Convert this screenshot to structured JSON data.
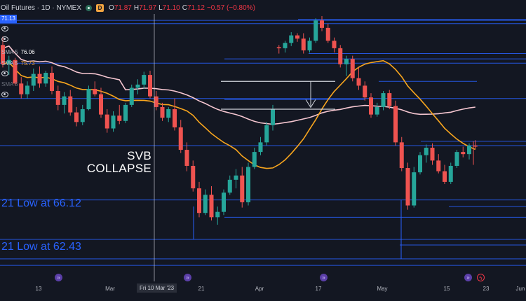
{
  "header": {
    "symbol": "Oil Futures · 1D · NYMEX",
    "interval_badge": "D",
    "ohlc": [
      {
        "k": "O",
        "v": "71.87"
      },
      {
        "k": "H",
        "v": "71.97"
      },
      {
        "k": "L",
        "v": "71.10"
      },
      {
        "k": "C",
        "v": "71.12"
      },
      {
        "k": "",
        "v": "−0.57 (−0.80%)"
      }
    ]
  },
  "last_price_badge": "71.13",
  "indicators": [
    {
      "label": "SMA 5",
      "value": "76.06",
      "color": "#ffffff"
    },
    {
      "label": "SMA 5",
      "value": "75.73",
      "color": "#f2a541"
    },
    {
      "label": "SMA 5",
      "value": "",
      "color": "#b2b5be"
    }
  ],
  "annotations": {
    "svb_line1": "SVB",
    "svb_line2": "COLLAPSE",
    "low1": "21 Low at 66.12",
    "low2": "21 Low at 62.43"
  },
  "x_axis": {
    "ticks": [
      "13",
      "Mar",
      "21",
      "Apr",
      "17",
      "May",
      "15",
      "23",
      "Jun"
    ],
    "cursor_label": "Fri 10 Mar '23"
  },
  "colors": {
    "up": "#26a69a",
    "down": "#ef5350",
    "sma_long": "#f5c6d0",
    "sma_mid": "#f7a51e",
    "hline": "#2962ff",
    "background": "#131722"
  },
  "chart_data": {
    "type": "candlestick",
    "title": "Oil Futures · 1D · NYMEX",
    "ylim": [
      58.5,
      83.5
    ],
    "candles": [
      [
        80.6,
        81.4,
        78.5,
        78.8
      ],
      [
        78.8,
        79.6,
        77.8,
        79.2
      ],
      [
        79.2,
        79.4,
        76.8,
        77.0
      ],
      [
        77.0,
        77.6,
        75.6,
        76.0
      ],
      [
        76.0,
        77.2,
        75.6,
        76.8
      ],
      [
        76.8,
        78.4,
        76.3,
        77.9
      ],
      [
        77.9,
        78.6,
        76.6,
        77.0
      ],
      [
        77.0,
        78.2,
        76.7,
        78.0
      ],
      [
        78.0,
        78.6,
        76.0,
        76.3
      ],
      [
        76.3,
        76.8,
        74.5,
        75.0
      ],
      [
        75.0,
        76.2,
        74.2,
        75.8
      ],
      [
        75.8,
        76.4,
        74.0,
        74.3
      ],
      [
        74.3,
        74.8,
        73.0,
        73.4
      ],
      [
        73.4,
        75.0,
        73.1,
        74.6
      ],
      [
        74.6,
        76.8,
        74.5,
        76.5
      ],
      [
        76.5,
        77.2,
        75.8,
        76.0
      ],
      [
        76.0,
        76.6,
        73.8,
        74.1
      ],
      [
        74.1,
        74.6,
        72.4,
        72.8
      ],
      [
        72.8,
        74.4,
        72.5,
        74.0
      ],
      [
        74.0,
        75.0,
        73.2,
        73.5
      ],
      [
        73.5,
        75.2,
        73.3,
        75.0
      ],
      [
        75.0,
        76.9,
        74.8,
        76.6
      ],
      [
        76.6,
        77.4,
        76.0,
        76.9
      ],
      [
        76.9,
        78.1,
        76.5,
        77.8
      ],
      [
        77.8,
        78.2,
        75.6,
        75.8
      ],
      [
        75.8,
        76.3,
        74.5,
        74.8
      ],
      [
        74.8,
        75.2,
        73.5,
        73.8
      ],
      [
        73.8,
        74.8,
        73.4,
        74.6
      ],
      [
        74.6,
        75.6,
        72.6,
        72.9
      ],
      [
        72.9,
        73.6,
        70.5,
        70.8
      ],
      [
        70.8,
        71.5,
        68.8,
        69.3
      ],
      [
        69.3,
        69.8,
        66.9,
        67.2
      ],
      [
        67.2,
        67.8,
        64.5,
        64.9
      ],
      [
        64.9,
        67.1,
        64.7,
        66.6
      ],
      [
        66.6,
        67.4,
        64.2,
        64.5
      ],
      [
        64.5,
        65.5,
        63.8,
        65.0
      ],
      [
        65.0,
        67.1,
        64.7,
        66.8
      ],
      [
        66.8,
        68.4,
        66.6,
        68.0
      ],
      [
        68.0,
        69.0,
        67.2,
        68.4
      ],
      [
        68.4,
        69.2,
        65.4,
        65.9
      ],
      [
        65.9,
        69.6,
        65.6,
        69.2
      ],
      [
        69.2,
        71.0,
        69.0,
        70.6
      ],
      [
        70.6,
        72.0,
        70.3,
        71.5
      ],
      [
        71.5,
        73.4,
        71.2,
        73.1
      ],
      [
        73.1,
        75.0,
        72.6,
        74.6
      ],
      [
        80.4,
        80.6,
        79.8,
        80.3
      ],
      [
        80.3,
        81.0,
        79.9,
        80.8
      ],
      [
        80.8,
        81.8,
        80.5,
        81.5
      ],
      [
        81.5,
        81.7,
        80.9,
        81.2
      ],
      [
        81.2,
        81.7,
        79.8,
        80.1
      ],
      [
        80.1,
        81.3,
        79.9,
        81.0
      ],
      [
        81.0,
        83.1,
        80.8,
        82.9
      ],
      [
        82.9,
        83.3,
        81.9,
        82.2
      ],
      [
        82.2,
        82.6,
        80.8,
        81.0
      ],
      [
        81.0,
        81.3,
        79.9,
        80.3
      ],
      [
        80.3,
        80.6,
        78.5,
        78.8
      ],
      [
        78.8,
        79.6,
        77.7,
        79.3
      ],
      [
        79.3,
        79.6,
        77.2,
        77.5
      ],
      [
        77.5,
        78.5,
        76.4,
        76.8
      ],
      [
        76.8,
        77.2,
        75.4,
        75.7
      ],
      [
        75.7,
        76.1,
        73.8,
        74.1
      ],
      [
        74.1,
        75.2,
        73.9,
        74.8
      ],
      [
        74.8,
        76.3,
        74.5,
        76.1
      ],
      [
        76.1,
        76.4,
        74.6,
        74.9
      ],
      [
        74.9,
        75.4,
        71.2,
        71.5
      ],
      [
        71.5,
        72.0,
        68.8,
        69.1
      ],
      [
        69.1,
        69.6,
        65.2,
        65.6
      ],
      [
        65.6,
        69.2,
        65.4,
        68.7
      ],
      [
        68.7,
        70.6,
        68.5,
        70.3
      ],
      [
        70.3,
        71.3,
        69.6,
        71.0
      ],
      [
        71.0,
        71.4,
        69.4,
        69.8
      ],
      [
        69.8,
        70.4,
        68.6,
        68.8
      ],
      [
        68.8,
        69.4,
        67.6,
        67.8
      ],
      [
        67.8,
        69.6,
        67.6,
        69.3
      ],
      [
        69.3,
        70.8,
        69.1,
        70.6
      ],
      [
        70.6,
        71.1,
        70.1,
        70.4
      ],
      [
        70.4,
        71.4,
        69.9,
        71.2
      ],
      [
        71.2,
        71.7,
        70.9,
        71.1
      ]
    ],
    "levels": [
      82.6,
      82.9,
      83.0,
      79.8,
      79.3,
      78.9,
      77.2,
      75.6,
      75.5,
      71.6,
      71.2,
      66.12,
      65.5,
      64.5,
      62.43,
      61.9,
      60.6,
      60.0
    ]
  }
}
